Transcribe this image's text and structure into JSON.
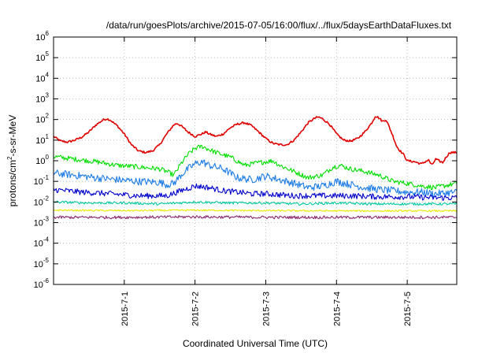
{
  "chart_data": {
    "type": "line",
    "title": "/data/run/goesPlots/archive/2015-07-05/16:00/flux/../flux/5daysEarthDataFluxes.txt",
    "xlabel": "Coordinated Universal Time (UTC)",
    "ylabel": "protons/cm2-s-sr-MeV",
    "ylabel_parts": {
      "pre": "protons/cm",
      "sup": "2",
      "post": "-s-sr-MeV"
    },
    "yscale": "log",
    "ylim": [
      1e-06,
      1000000.0
    ],
    "y_tick_exponents": [
      "-6",
      "-5",
      "-4",
      "-3",
      "-2",
      "-1",
      "0",
      "1",
      "2",
      "3",
      "4",
      "5",
      "6"
    ],
    "y_tick_base": "10",
    "xlim_days": [
      0.0,
      5.7
    ],
    "x_ticks": [
      {
        "day": 1,
        "label": "2015-7-1"
      },
      {
        "day": 2,
        "label": "2015-7-2"
      },
      {
        "day": 3,
        "label": "2015-7-3"
      },
      {
        "day": 4,
        "label": "2015-7-4"
      },
      {
        "day": 5,
        "label": "2015-7-5"
      }
    ],
    "grid": true,
    "legend": "none",
    "series": [
      {
        "color": "#e00000",
        "points": [
          [
            0.0,
            15
          ],
          [
            0.1,
            9
          ],
          [
            0.2,
            8
          ],
          [
            0.3,
            10
          ],
          [
            0.4,
            14
          ],
          [
            0.5,
            25
          ],
          [
            0.6,
            55
          ],
          [
            0.7,
            95
          ],
          [
            0.75,
            110
          ],
          [
            0.8,
            95
          ],
          [
            0.9,
            50
          ],
          [
            1.0,
            20
          ],
          [
            1.1,
            6
          ],
          [
            1.2,
            3
          ],
          [
            1.3,
            2.5
          ],
          [
            1.4,
            3
          ],
          [
            1.5,
            6
          ],
          [
            1.6,
            20
          ],
          [
            1.7,
            55
          ],
          [
            1.75,
            65
          ],
          [
            1.8,
            50
          ],
          [
            1.9,
            25
          ],
          [
            2.0,
            15
          ],
          [
            2.1,
            20
          ],
          [
            2.15,
            25
          ],
          [
            2.2,
            20
          ],
          [
            2.3,
            15
          ],
          [
            2.4,
            20
          ],
          [
            2.5,
            40
          ],
          [
            2.6,
            60
          ],
          [
            2.7,
            70
          ],
          [
            2.8,
            50
          ],
          [
            2.9,
            25
          ],
          [
            3.0,
            12
          ],
          [
            3.1,
            7
          ],
          [
            3.2,
            6
          ],
          [
            3.3,
            6
          ],
          [
            3.4,
            10
          ],
          [
            3.5,
            25
          ],
          [
            3.6,
            70
          ],
          [
            3.7,
            120
          ],
          [
            3.75,
            130
          ],
          [
            3.8,
            110
          ],
          [
            3.9,
            60
          ],
          [
            4.0,
            20
          ],
          [
            4.1,
            10
          ],
          [
            4.2,
            9
          ],
          [
            4.3,
            12
          ],
          [
            4.4,
            25
          ],
          [
            4.5,
            70
          ],
          [
            4.55,
            150
          ],
          [
            4.6,
            120
          ],
          [
            4.65,
            80
          ],
          [
            4.7,
            100
          ],
          [
            4.75,
            40
          ],
          [
            4.8,
            15
          ],
          [
            4.85,
            5
          ],
          [
            4.9,
            3
          ],
          [
            4.95,
            2
          ],
          [
            5.0,
            1
          ],
          [
            5.1,
            0.9
          ],
          [
            5.2,
            0.7
          ],
          [
            5.3,
            1.1
          ],
          [
            5.35,
            0.6
          ],
          [
            5.4,
            1.2
          ],
          [
            5.5,
            0.8
          ],
          [
            5.55,
            1.5
          ],
          [
            5.6,
            2.5
          ],
          [
            5.7,
            2.5
          ]
        ]
      },
      {
        "color": "#00dd00",
        "points": [
          [
            0.0,
            1.6
          ],
          [
            0.3,
            1.2
          ],
          [
            0.6,
            0.9
          ],
          [
            0.9,
            0.6
          ],
          [
            1.2,
            0.5
          ],
          [
            1.5,
            0.4
          ],
          [
            1.6,
            0.3
          ],
          [
            1.7,
            0.2
          ],
          [
            1.8,
            0.7
          ],
          [
            1.9,
            2
          ],
          [
            2.0,
            4
          ],
          [
            2.1,
            5
          ],
          [
            2.2,
            3.5
          ],
          [
            2.3,
            2.5
          ],
          [
            2.5,
            1.5
          ],
          [
            2.7,
            0.6
          ],
          [
            2.9,
            0.8
          ],
          [
            3.0,
            0.9
          ],
          [
            3.1,
            1.0
          ],
          [
            3.2,
            0.6
          ],
          [
            3.4,
            0.3
          ],
          [
            3.6,
            0.15
          ],
          [
            3.8,
            0.2
          ],
          [
            3.95,
            0.5
          ],
          [
            4.05,
            0.6
          ],
          [
            4.2,
            0.4
          ],
          [
            4.4,
            0.3
          ],
          [
            4.6,
            0.2
          ],
          [
            4.8,
            0.1
          ],
          [
            5.0,
            0.08
          ],
          [
            5.2,
            0.06
          ],
          [
            5.4,
            0.05
          ],
          [
            5.7,
            0.08
          ]
        ]
      },
      {
        "color": "#1e7de6",
        "points": [
          [
            0.0,
            0.25
          ],
          [
            0.3,
            0.2
          ],
          [
            0.6,
            0.15
          ],
          [
            0.9,
            0.12
          ],
          [
            1.2,
            0.1
          ],
          [
            1.5,
            0.09
          ],
          [
            1.6,
            0.07
          ],
          [
            1.7,
            0.08
          ],
          [
            1.8,
            0.2
          ],
          [
            1.9,
            0.4
          ],
          [
            2.0,
            0.7
          ],
          [
            2.1,
            0.9
          ],
          [
            2.2,
            0.6
          ],
          [
            2.4,
            0.4
          ],
          [
            2.6,
            0.15
          ],
          [
            2.8,
            0.12
          ],
          [
            3.0,
            0.18
          ],
          [
            3.2,
            0.12
          ],
          [
            3.4,
            0.08
          ],
          [
            3.6,
            0.05
          ],
          [
            3.8,
            0.06
          ],
          [
            4.0,
            0.1
          ],
          [
            4.2,
            0.07
          ],
          [
            4.4,
            0.05
          ],
          [
            4.6,
            0.04
          ],
          [
            4.8,
            0.035
          ],
          [
            5.0,
            0.03
          ],
          [
            5.2,
            0.03
          ],
          [
            5.4,
            0.025
          ],
          [
            5.7,
            0.03
          ]
        ]
      },
      {
        "color": "#0000cc",
        "points": [
          [
            0.0,
            0.04
          ],
          [
            0.4,
            0.03
          ],
          [
            0.8,
            0.025
          ],
          [
            1.2,
            0.02
          ],
          [
            1.6,
            0.02
          ],
          [
            1.8,
            0.035
          ],
          [
            2.0,
            0.06
          ],
          [
            2.2,
            0.05
          ],
          [
            2.4,
            0.035
          ],
          [
            2.6,
            0.03
          ],
          [
            2.8,
            0.025
          ],
          [
            3.0,
            0.025
          ],
          [
            3.4,
            0.02
          ],
          [
            3.8,
            0.02
          ],
          [
            4.2,
            0.02
          ],
          [
            4.6,
            0.018
          ],
          [
            5.0,
            0.018
          ],
          [
            5.4,
            0.016
          ],
          [
            5.7,
            0.016
          ]
        ]
      },
      {
        "color": "#00c8a0",
        "points": [
          [
            0.0,
            0.01
          ],
          [
            0.5,
            0.009
          ],
          [
            1.0,
            0.009
          ],
          [
            1.5,
            0.008
          ],
          [
            2.0,
            0.01
          ],
          [
            2.5,
            0.009
          ],
          [
            3.0,
            0.009
          ],
          [
            3.5,
            0.008
          ],
          [
            4.0,
            0.009
          ],
          [
            4.5,
            0.008
          ],
          [
            5.0,
            0.008
          ],
          [
            5.7,
            0.008
          ]
        ]
      },
      {
        "color": "#e8e800",
        "points": [
          [
            0.0,
            0.004
          ],
          [
            1.0,
            0.0038
          ],
          [
            2.0,
            0.004
          ],
          [
            3.0,
            0.0038
          ],
          [
            4.0,
            0.0037
          ],
          [
            5.0,
            0.0037
          ],
          [
            5.7,
            0.0037
          ]
        ]
      },
      {
        "color": "#8a2a6e",
        "points": [
          [
            0.0,
            0.0018
          ],
          [
            1.0,
            0.0018
          ],
          [
            2.0,
            0.0019
          ],
          [
            3.0,
            0.0018
          ],
          [
            4.0,
            0.0018
          ],
          [
            5.0,
            0.0018
          ],
          [
            5.7,
            0.0018
          ]
        ]
      }
    ]
  }
}
